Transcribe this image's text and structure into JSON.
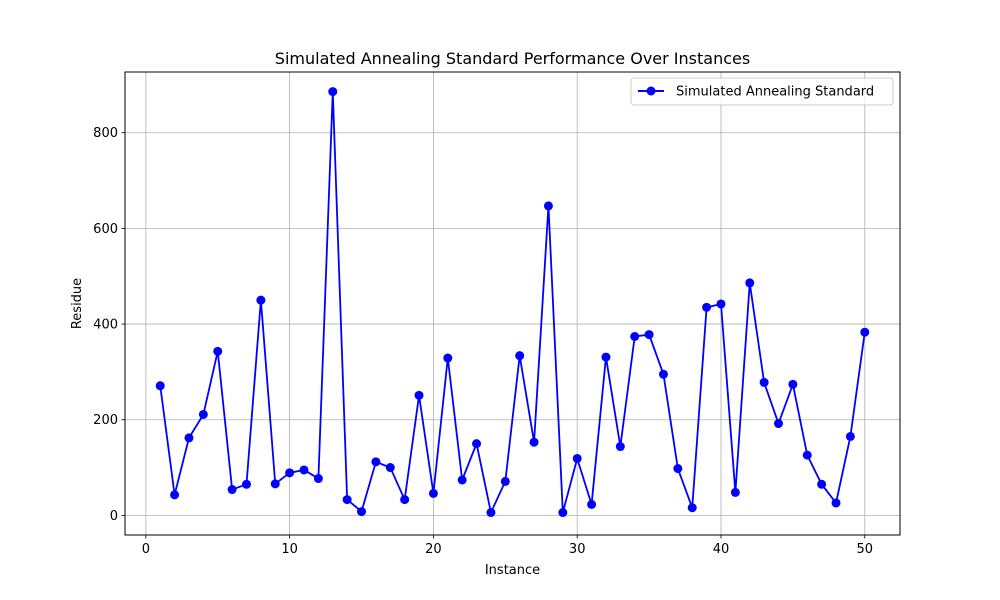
{
  "chart_data": {
    "type": "line",
    "title": "Simulated Annealing Standard Performance Over Instances",
    "xlabel": "Instance",
    "ylabel": "Residue",
    "xlim": [
      -1.45,
      52.45
    ],
    "ylim": [
      -41,
      927
    ],
    "xticks": [
      0,
      10,
      20,
      30,
      40,
      50
    ],
    "yticks": [
      0,
      200,
      400,
      600,
      800
    ],
    "grid": true,
    "legend_position": "top-right",
    "series": [
      {
        "name": "Simulated Annealing Standard",
        "color": "#0000ff",
        "marker": "circle",
        "x": [
          1,
          2,
          3,
          4,
          5,
          6,
          7,
          8,
          9,
          10,
          11,
          12,
          13,
          14,
          15,
          16,
          17,
          18,
          19,
          20,
          21,
          22,
          23,
          24,
          25,
          26,
          27,
          28,
          29,
          30,
          31,
          32,
          33,
          34,
          35,
          36,
          37,
          38,
          39,
          40,
          41,
          42,
          43,
          44,
          45,
          46,
          47,
          48,
          49,
          50
        ],
        "values": [
          271,
          43,
          162,
          211,
          343,
          54,
          65,
          450,
          66,
          89,
          95,
          77,
          886,
          33,
          8,
          112,
          100,
          33,
          251,
          46,
          329,
          74,
          150,
          6,
          71,
          334,
          153,
          647,
          6,
          119,
          23,
          331,
          144,
          374,
          378,
          295,
          98,
          16,
          435,
          442,
          48,
          486,
          278,
          192,
          274,
          126,
          65,
          26,
          165,
          383
        ]
      }
    ]
  }
}
